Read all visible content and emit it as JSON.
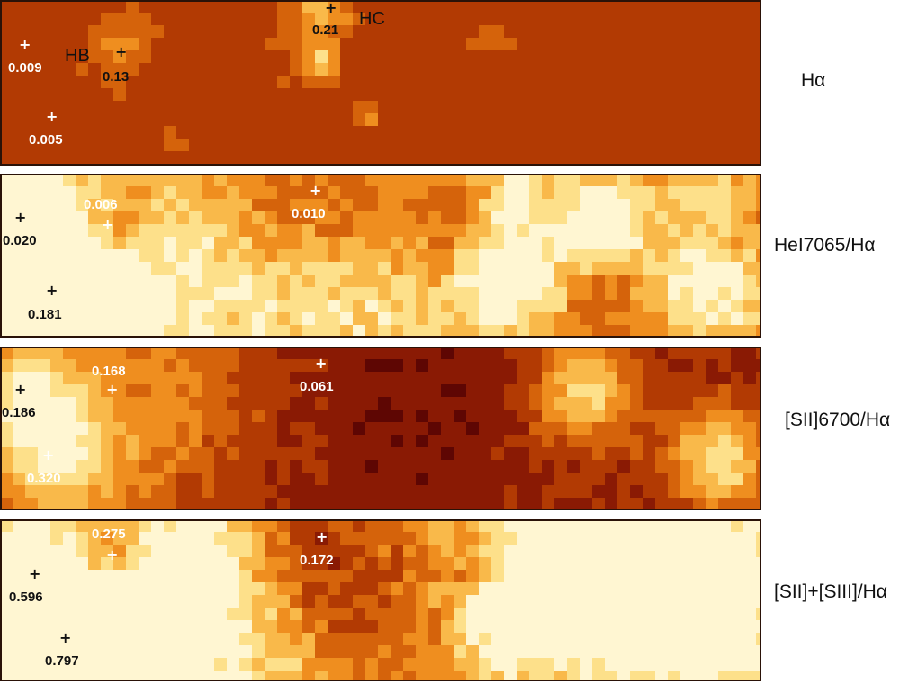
{
  "panels": [
    {
      "label": "Hα",
      "markers": [
        {
          "value": "0.009"
        },
        {
          "value": "0.13"
        },
        {
          "value": "0.005"
        },
        {
          "value": "0.21"
        }
      ],
      "region_labels": [
        "HB",
        "HC"
      ]
    },
    {
      "label": "HeI7065/Hα",
      "markers": [
        {
          "value": "0.020"
        },
        {
          "value": "0.006"
        },
        {
          "value": "0.181"
        },
        {
          "value": "0.010"
        }
      ]
    },
    {
      "label": "[SII]6700/Hα",
      "markers": [
        {
          "value": "0.186"
        },
        {
          "value": "0.168"
        },
        {
          "value": "0.320"
        },
        {
          "value": "0.061"
        }
      ]
    },
    {
      "label": "[SII]+[SIII]/Hα",
      "markers": [
        {
          "value": "0.596"
        },
        {
          "value": "0.275"
        },
        {
          "value": "0.797"
        },
        {
          "value": "0.172"
        }
      ]
    }
  ],
  "colormap": [
    "#5e0603",
    "#8a1a04",
    "#b23a03",
    "#d5630b",
    "#ef8e1f",
    "#f9b94a",
    "#fde08a",
    "#fff6d2",
    "#ffffff"
  ]
}
